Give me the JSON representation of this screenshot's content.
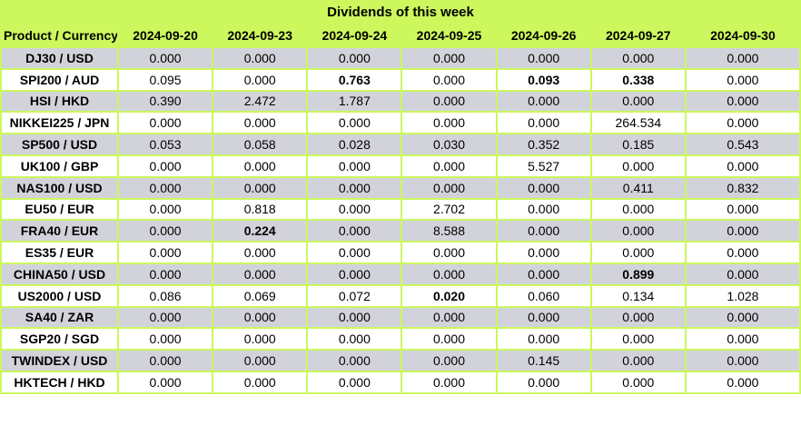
{
  "title": "Dividends of this week",
  "colors": {
    "accent_green": "#ccf75d",
    "row_gray": "#d2d3da",
    "row_white": "#ffffff",
    "text": "#000000"
  },
  "table": {
    "product_column_header": "Product / Currency",
    "date_columns": [
      "2024-09-20",
      "2024-09-23",
      "2024-09-24",
      "2024-09-25",
      "2024-09-26",
      "2024-09-27",
      "2024-09-30"
    ],
    "rows": [
      {
        "product": "DJ30 / USD",
        "values": [
          "0.000",
          "0.000",
          "0.000",
          "0.000",
          "0.000",
          "0.000",
          "0.000"
        ],
        "bold": []
      },
      {
        "product": "SPI200 / AUD",
        "values": [
          "0.095",
          "0.000",
          "0.763",
          "0.000",
          "0.093",
          "0.338",
          "0.000"
        ],
        "bold": [
          2,
          4,
          5
        ]
      },
      {
        "product": "HSI / HKD",
        "values": [
          "0.390",
          "2.472",
          "1.787",
          "0.000",
          "0.000",
          "0.000",
          "0.000"
        ],
        "bold": []
      },
      {
        "product": "NIKKEI225 / JPN",
        "values": [
          "0.000",
          "0.000",
          "0.000",
          "0.000",
          "0.000",
          "264.534",
          "0.000"
        ],
        "bold": []
      },
      {
        "product": "SP500 / USD",
        "values": [
          "0.053",
          "0.058",
          "0.028",
          "0.030",
          "0.352",
          "0.185",
          "0.543"
        ],
        "bold": []
      },
      {
        "product": "UK100 / GBP",
        "values": [
          "0.000",
          "0.000",
          "0.000",
          "0.000",
          "5.527",
          "0.000",
          "0.000"
        ],
        "bold": []
      },
      {
        "product": "NAS100 / USD",
        "values": [
          "0.000",
          "0.000",
          "0.000",
          "0.000",
          "0.000",
          "0.411",
          "0.832"
        ],
        "bold": []
      },
      {
        "product": "EU50 / EUR",
        "values": [
          "0.000",
          "0.818",
          "0.000",
          "2.702",
          "0.000",
          "0.000",
          "0.000"
        ],
        "bold": []
      },
      {
        "product": "FRA40 / EUR",
        "values": [
          "0.000",
          "0.224",
          "0.000",
          "8.588",
          "0.000",
          "0.000",
          "0.000"
        ],
        "bold": [
          1
        ]
      },
      {
        "product": "ES35 / EUR",
        "values": [
          "0.000",
          "0.000",
          "0.000",
          "0.000",
          "0.000",
          "0.000",
          "0.000"
        ],
        "bold": []
      },
      {
        "product": "CHINA50 / USD",
        "values": [
          "0.000",
          "0.000",
          "0.000",
          "0.000",
          "0.000",
          "0.899",
          "0.000"
        ],
        "bold": [
          5
        ]
      },
      {
        "product": "US2000 / USD",
        "values": [
          "0.086",
          "0.069",
          "0.072",
          "0.020",
          "0.060",
          "0.134",
          "1.028"
        ],
        "bold": [
          3
        ]
      },
      {
        "product": "SA40 / ZAR",
        "values": [
          "0.000",
          "0.000",
          "0.000",
          "0.000",
          "0.000",
          "0.000",
          "0.000"
        ],
        "bold": []
      },
      {
        "product": "SGP20 / SGD",
        "values": [
          "0.000",
          "0.000",
          "0.000",
          "0.000",
          "0.000",
          "0.000",
          "0.000"
        ],
        "bold": []
      },
      {
        "product": "TWINDEX / USD",
        "values": [
          "0.000",
          "0.000",
          "0.000",
          "0.000",
          "0.145",
          "0.000",
          "0.000"
        ],
        "bold": []
      },
      {
        "product": "HKTECH / HKD",
        "values": [
          "0.000",
          "0.000",
          "0.000",
          "0.000",
          "0.000",
          "0.000",
          "0.000"
        ],
        "bold": []
      }
    ]
  }
}
